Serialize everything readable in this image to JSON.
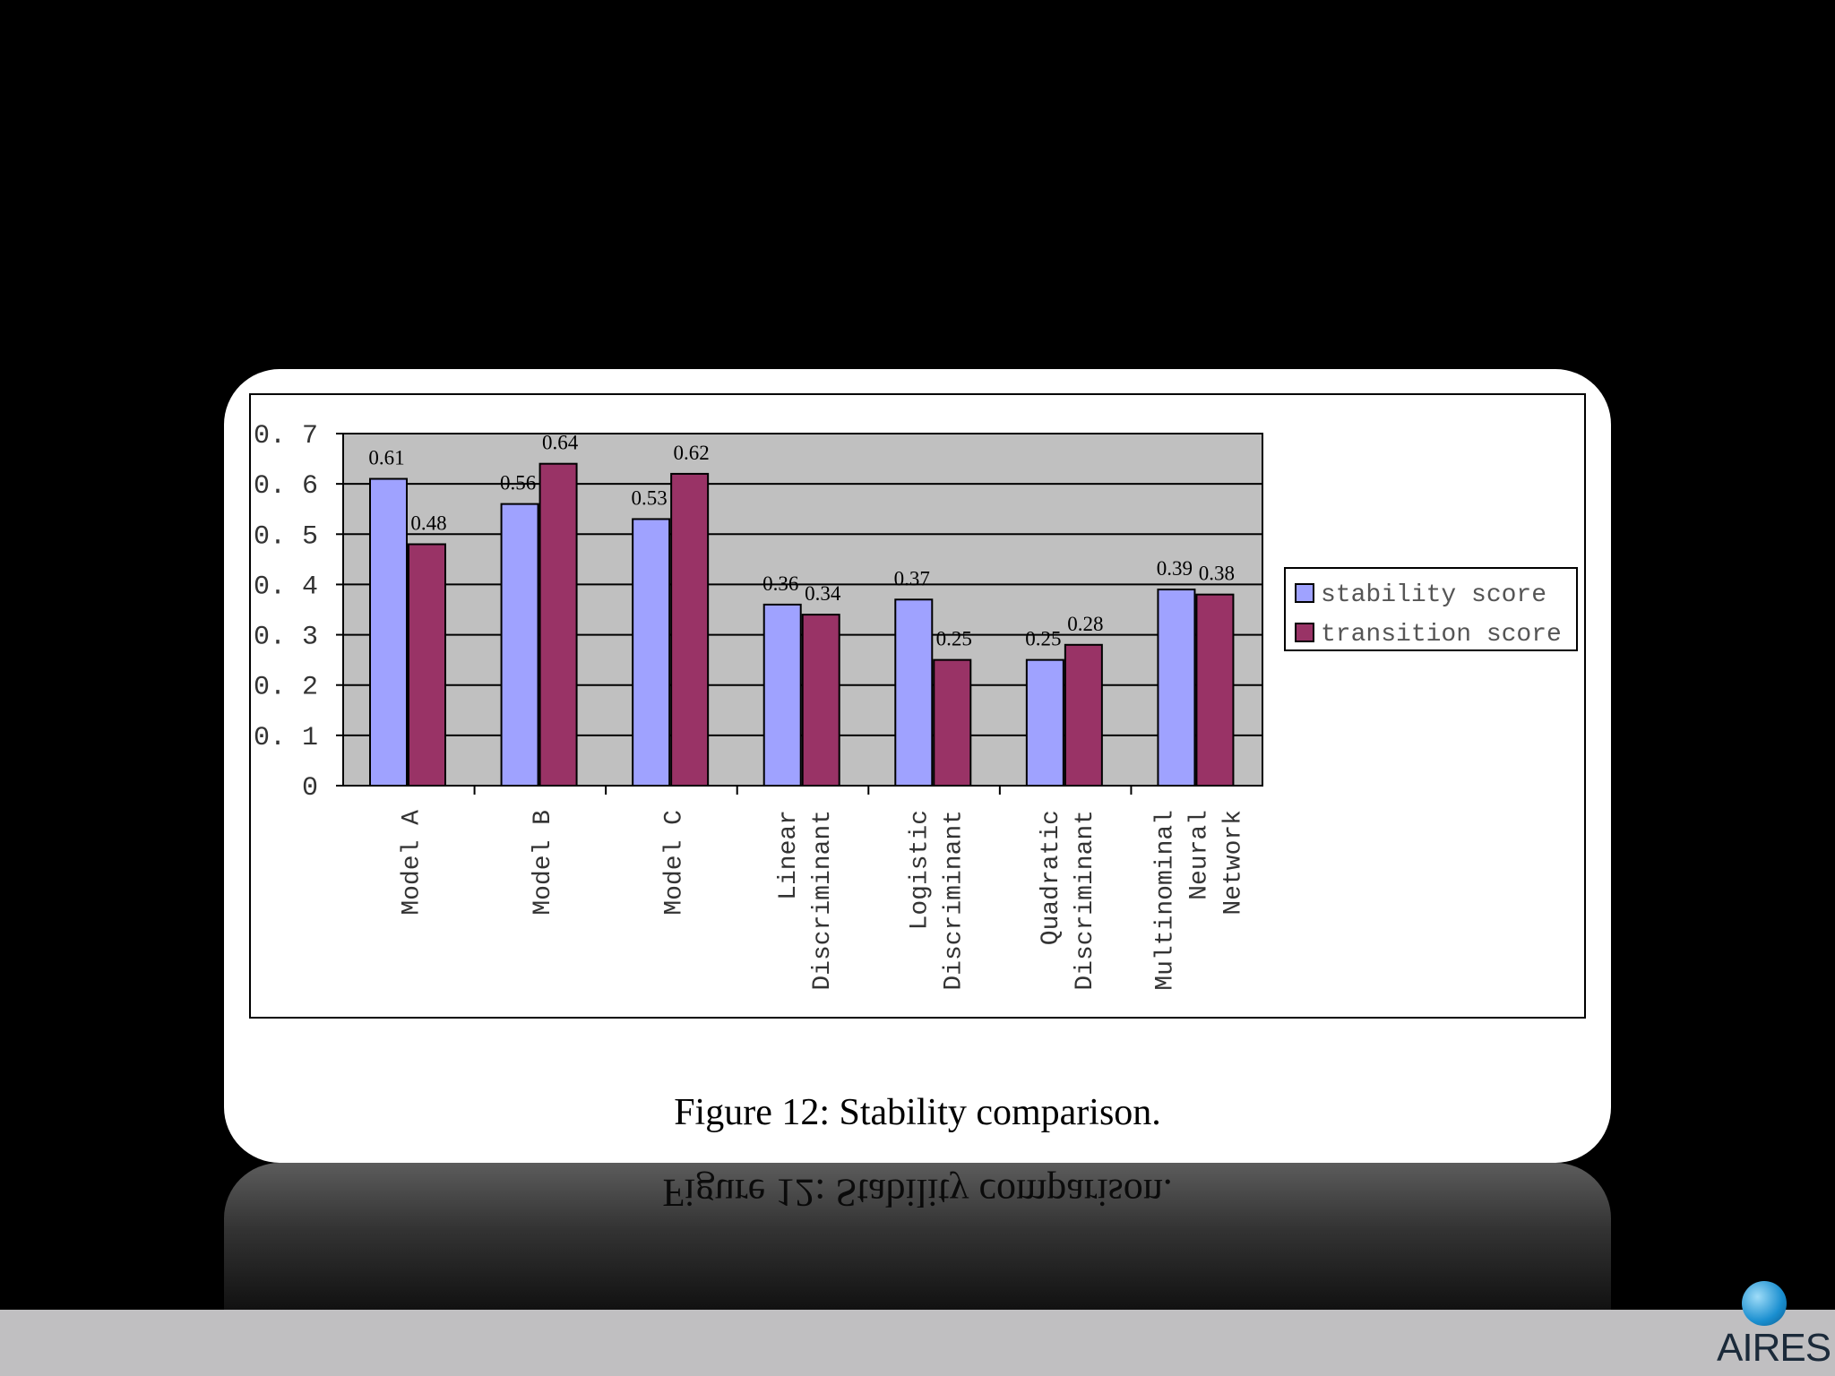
{
  "caption": "Figure 12: Stability comparison.",
  "logo": {
    "text": "AIRES",
    "icon": "globe-icon"
  },
  "chart_data": {
    "type": "bar",
    "categories": [
      [
        "Model A"
      ],
      [
        "Model B"
      ],
      [
        "Model C"
      ],
      [
        "Linear",
        "Discriminant"
      ],
      [
        "Logistic",
        "Discriminant"
      ],
      [
        "Quadratic",
        "Discriminant"
      ],
      [
        "Multinominal",
        "Neural",
        "Network"
      ]
    ],
    "series": [
      {
        "name": "stability score",
        "color": "#9fa2ff",
        "values": [
          0.61,
          0.56,
          0.53,
          0.36,
          0.37,
          0.25,
          0.39
        ],
        "labels": [
          "0.61",
          "0.56",
          "0.53",
          "0.36",
          "0.37",
          "0.25",
          "0.39"
        ]
      },
      {
        "name": "transition score",
        "color": "#993366",
        "values": [
          0.48,
          0.64,
          0.62,
          0.34,
          0.25,
          0.28,
          0.38
        ],
        "labels": [
          "0.48",
          "0.64",
          "0.62",
          "0.34",
          "0.25",
          "0.28",
          "0.38"
        ]
      }
    ],
    "yticks": [
      "0",
      "0. 1",
      "0. 2",
      "0. 3",
      "0. 4",
      "0. 5",
      "0. 6",
      "0. 7"
    ],
    "ylim": [
      0,
      0.7
    ],
    "grid": true,
    "legend": "right",
    "plot_background": "#c0c0c0"
  }
}
